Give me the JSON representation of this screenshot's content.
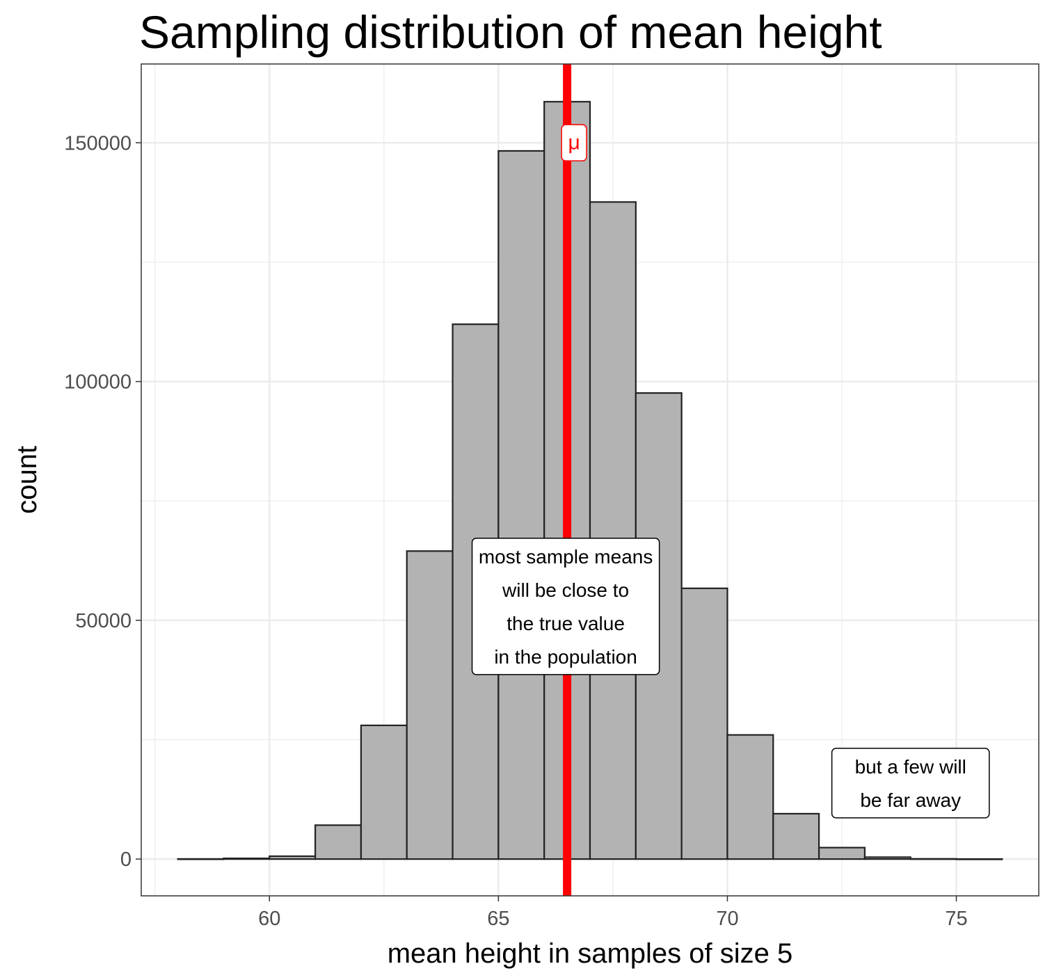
{
  "chart_data": {
    "type": "bar",
    "title": "Sampling distribution of mean height",
    "xlabel": "mean height in samples of size 5",
    "ylabel": "count",
    "xlim": [
      57.2,
      76.8
    ],
    "ylim": [
      -7700,
      166500
    ],
    "x_ticks": [
      60,
      65,
      70,
      75
    ],
    "y_ticks": [
      0,
      50000,
      100000,
      150000
    ],
    "x_tick_labels": [
      "60",
      "65",
      "70",
      "75"
    ],
    "y_tick_labels": [
      "0",
      "50000",
      "100000",
      "150000"
    ],
    "grid": true,
    "bins": [
      {
        "x0": 58,
        "x1": 59,
        "count": 30
      },
      {
        "x0": 59,
        "x1": 60,
        "count": 150
      },
      {
        "x0": 60,
        "x1": 61,
        "count": 600
      },
      {
        "x0": 61,
        "x1": 62,
        "count": 7100
      },
      {
        "x0": 62,
        "x1": 63,
        "count": 28000
      },
      {
        "x0": 63,
        "x1": 64,
        "count": 64500
      },
      {
        "x0": 64,
        "x1": 65,
        "count": 112000
      },
      {
        "x0": 65,
        "x1": 66,
        "count": 148300
      },
      {
        "x0": 66,
        "x1": 67,
        "count": 158600
      },
      {
        "x0": 67,
        "x1": 68,
        "count": 137600
      },
      {
        "x0": 68,
        "x1": 69,
        "count": 97600
      },
      {
        "x0": 69,
        "x1": 70,
        "count": 56700
      },
      {
        "x0": 70,
        "x1": 71,
        "count": 26000
      },
      {
        "x0": 71,
        "x1": 72,
        "count": 9500
      },
      {
        "x0": 72,
        "x1": 73,
        "count": 2400
      },
      {
        "x0": 73,
        "x1": 74,
        "count": 400
      },
      {
        "x0": 74,
        "x1": 75,
        "count": 50
      },
      {
        "x0": 75,
        "x1": 76,
        "count": 10
      }
    ],
    "reference_line": {
      "x": 66.5,
      "label": "μ",
      "label_y": 150000,
      "color": "#ff0000"
    },
    "annotations": [
      {
        "lines": [
          "most sample means",
          "will be close to",
          "the true value",
          "in the population"
        ],
        "x": 66.5,
        "y": 50000
      },
      {
        "lines": [
          "but a few will",
          "be far away"
        ],
        "x": 74.0,
        "y": 13000
      }
    ],
    "colors": {
      "bar_fill": "#b3b3b3",
      "bar_stroke": "#222222",
      "grid": "#ebebeb",
      "panel_border": "#333333",
      "tick_label": "#4d4d4d"
    }
  }
}
